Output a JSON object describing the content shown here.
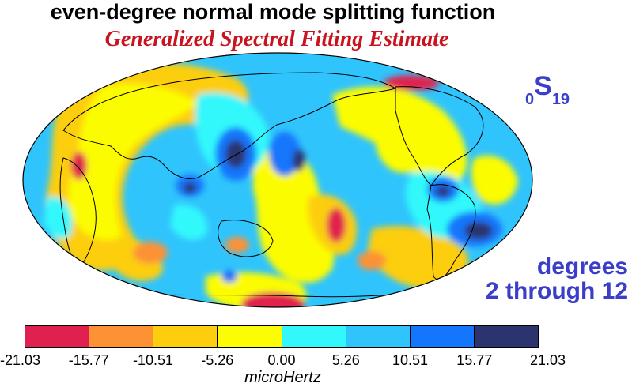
{
  "title": "even-degree normal mode splitting function",
  "subtitle": "Generalized Spectral Fitting Estimate",
  "mode": {
    "overtone": "0",
    "type": "S",
    "angular_order": "19"
  },
  "degree_range": {
    "line1": "degrees",
    "line2": "2 through 12"
  },
  "colorbar": {
    "unit": "microHertz",
    "ticks": [
      "-21.03",
      "-15.77",
      "-10.51",
      "-5.26",
      "0.00",
      "5.26",
      "10.51",
      "15.77",
      "21.03"
    ],
    "colors": [
      "#e0204e",
      "#fc9234",
      "#fcce0e",
      "#fcfc04",
      "#32f8fc",
      "#30c4fc",
      "#1476fc",
      "#2c3470"
    ]
  },
  "map": {
    "projection": "Mollweide",
    "ocean_color": "#30c4fc",
    "coastlines": "black"
  }
}
